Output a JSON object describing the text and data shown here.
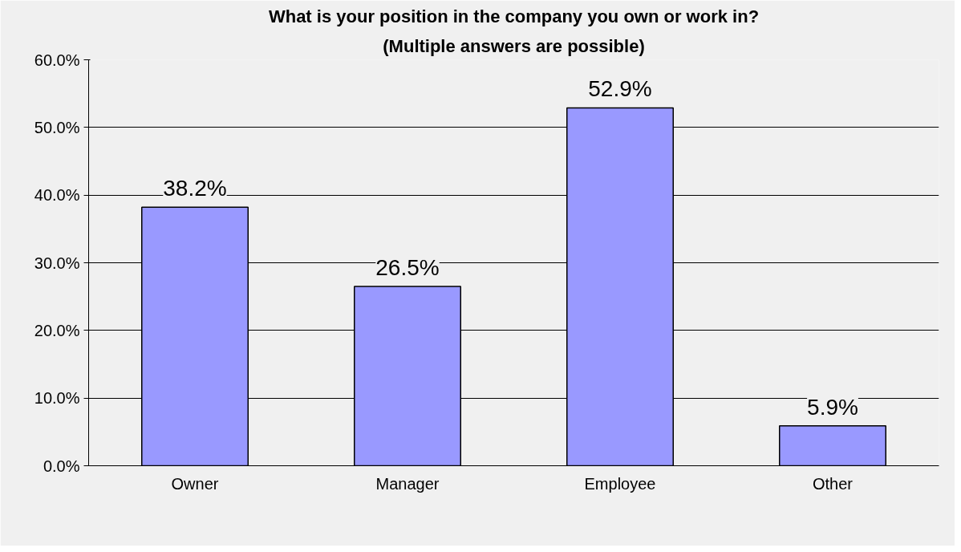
{
  "chart_data": {
    "type": "bar",
    "title": "What is your position in the company you own or work in?",
    "subtitle": "(Multiple answers are possible)",
    "categories": [
      "Owner",
      "Manager",
      "Employee",
      "Other"
    ],
    "values": [
      38.2,
      26.5,
      52.9,
      5.9
    ],
    "value_labels": [
      "38.2%",
      "26.5%",
      "52.9%",
      "5.9%"
    ],
    "color": "#9999ff",
    "ylim": [
      0,
      60
    ],
    "yticks": [
      {
        "value": 0,
        "label": "0.0%"
      },
      {
        "value": 10,
        "label": "10.0%"
      },
      {
        "value": 20,
        "label": "20.0%"
      },
      {
        "value": 30,
        "label": "30.0%"
      },
      {
        "value": 40,
        "label": "40.0%"
      },
      {
        "value": 50,
        "label": "50.0%"
      },
      {
        "value": 60,
        "label": "60.0%"
      }
    ],
    "grid": "y"
  }
}
